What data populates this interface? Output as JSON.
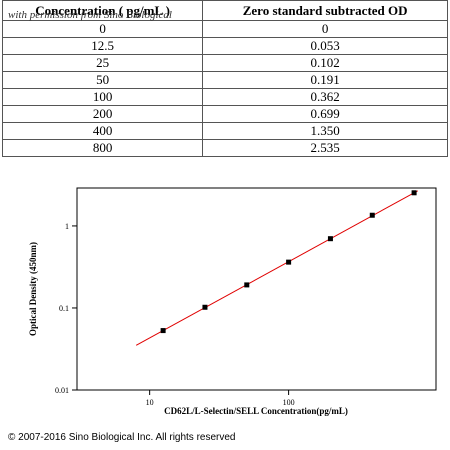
{
  "table": {
    "columns": [
      "Concentration ( pg/mL )",
      "Zero standard subtracted OD"
    ],
    "rows": [
      [
        "0",
        "0"
      ],
      [
        "12.5",
        "0.053"
      ],
      [
        "25",
        "0.102"
      ],
      [
        "50",
        "0.191"
      ],
      [
        "100",
        "0.362"
      ],
      [
        "200",
        "0.699"
      ],
      [
        "400",
        "1.350"
      ],
      [
        "800",
        "2.535"
      ]
    ],
    "watermark": "with permission from Sino Biological"
  },
  "chart_data": {
    "type": "scatter",
    "x_label": "CD62L/L-Selectin/SELL Concentration(pg/mL)",
    "y_label": "Optical Density (450nm)",
    "x": [
      12.5,
      25,
      50,
      100,
      200,
      400,
      800
    ],
    "values": [
      0.053,
      0.102,
      0.191,
      0.362,
      0.699,
      1.35,
      2.535
    ],
    "color": "#000000",
    "fit": {
      "color": "#e00000",
      "x": [
        8,
        850
      ],
      "values": [
        0.035,
        2.68
      ]
    },
    "xscale": "log",
    "yscale": "log",
    "xlim": [
      3,
      1150
    ],
    "ylim": [
      0.01,
      2.9
    ],
    "xticks": [
      10,
      100
    ],
    "yticks": [
      0.01,
      0.1,
      1
    ]
  },
  "footer": "© 2007-2016 Sino Biological Inc. All rights reserved"
}
